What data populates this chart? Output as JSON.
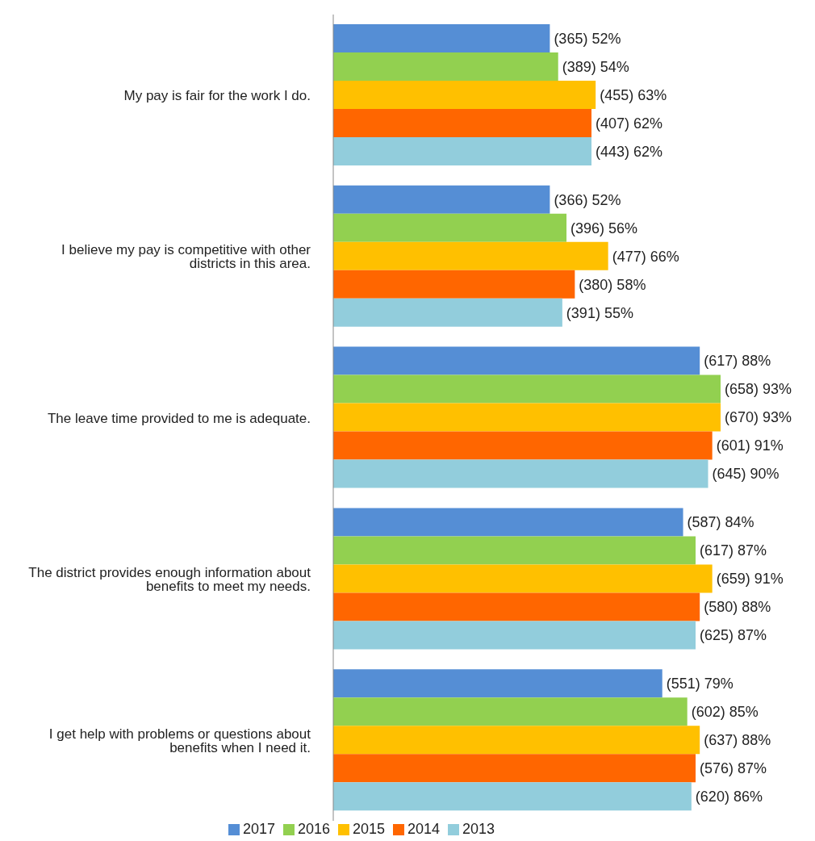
{
  "chart_data": {
    "type": "bar",
    "orientation": "horizontal",
    "categories": [
      "My pay is fair for the work I do.",
      "I believe my pay is competitive with other districts in this area.",
      "The leave time provided to me is adequate.",
      "The district provides enough information about benefits to meet my needs.",
      "I get help with problems or questions about benefits when I need it."
    ],
    "series": [
      {
        "name": "2017",
        "color": "#558ed5",
        "values": [
          52,
          52,
          88,
          84,
          79
        ],
        "value_labels": [
          "(365) 52%",
          "(366) 52%",
          "(617) 88%",
          "(587) 84%",
          "(551) 79%"
        ]
      },
      {
        "name": "2016",
        "color": "#92d050",
        "values": [
          54,
          56,
          93,
          87,
          85
        ],
        "value_labels": [
          "(389) 54%",
          "(396) 56%",
          "(658) 93%",
          "(617) 87%",
          "(602) 85%"
        ]
      },
      {
        "name": "2015",
        "color": "#ffc000",
        "values": [
          63,
          66,
          93,
          91,
          88
        ],
        "value_labels": [
          "(455) 63%",
          "(477) 66%",
          "(670) 93%",
          "(659) 91%",
          "(637) 88%"
        ]
      },
      {
        "name": "2014",
        "color": "#ff6600",
        "values": [
          62,
          58,
          91,
          88,
          87
        ],
        "value_labels": [
          "(407) 62%",
          "(380) 58%",
          "(601) 91%",
          "(580) 88%",
          "(576) 87%"
        ]
      },
      {
        "name": "2013",
        "color": "#92cddc",
        "values": [
          62,
          55,
          90,
          87,
          86
        ],
        "value_labels": [
          "(443) 62%",
          "(391) 55%",
          "(645) 90%",
          "(625) 87%",
          "(620) 86%"
        ]
      }
    ],
    "tick_labels": "y",
    "grid": false,
    "legend": "bottom"
  }
}
